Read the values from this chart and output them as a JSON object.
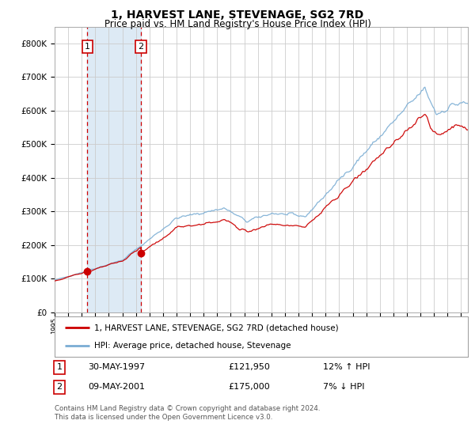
{
  "title": "1, HARVEST LANE, STEVENAGE, SG2 7RD",
  "subtitle": "Price paid vs. HM Land Registry's House Price Index (HPI)",
  "title_fontsize": 10,
  "subtitle_fontsize": 8.5,
  "background_color": "#ffffff",
  "plot_bg_color": "#ffffff",
  "grid_color": "#cccccc",
  "hpi_line_color": "#7aadd4",
  "price_line_color": "#cc0000",
  "sale1_date_num": 1997.42,
  "sale1_price": 121950,
  "sale2_date_num": 2001.36,
  "sale2_price": 175000,
  "legend_line1": "1, HARVEST LANE, STEVENAGE, SG2 7RD (detached house)",
  "legend_line2": "HPI: Average price, detached house, Stevenage",
  "table_row1": [
    "1",
    "30-MAY-1997",
    "£121,950",
    "12% ↑ HPI"
  ],
  "table_row2": [
    "2",
    "09-MAY-2001",
    "£175,000",
    "7% ↓ HPI"
  ],
  "footnote": "Contains HM Land Registry data © Crown copyright and database right 2024.\nThis data is licensed under the Open Government Licence v3.0.",
  "ylim": [
    0,
    850000
  ],
  "xlim_start": 1995.0,
  "xlim_end": 2025.5,
  "shade_x_start": 1997.42,
  "shade_x_end": 2001.36
}
